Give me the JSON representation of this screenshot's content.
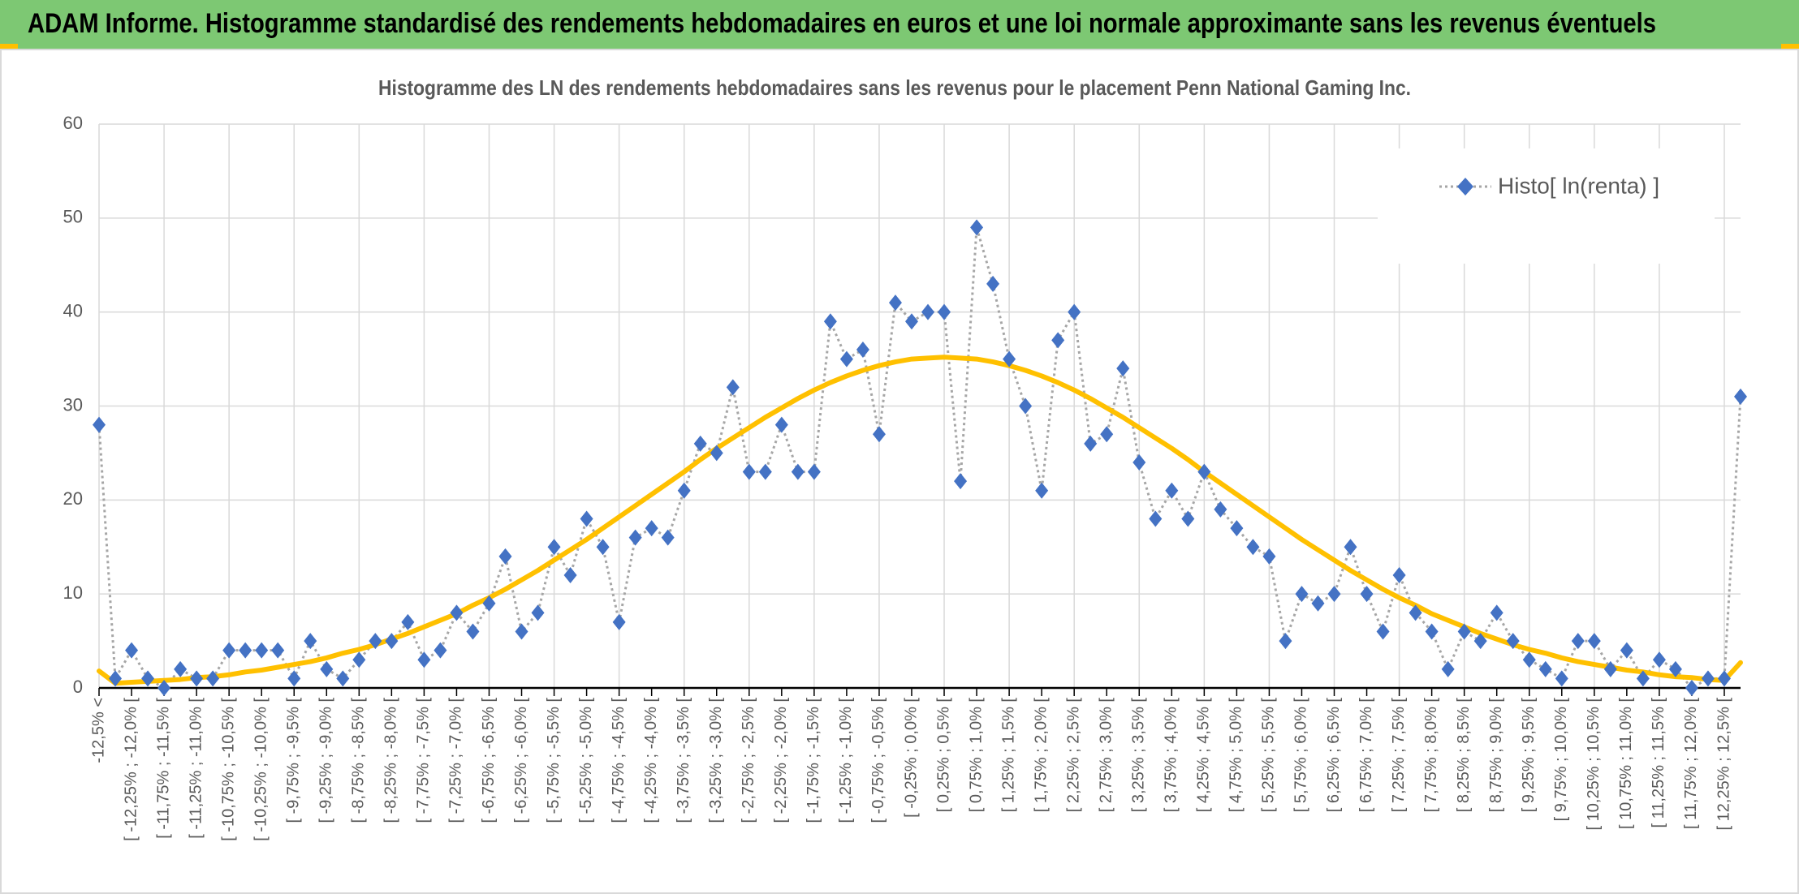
{
  "header": {
    "title": "ADAM Informe. Histogramme standardisé des rendements hebdomadaires en euros et une loi normale approximante sans les revenus éventuels"
  },
  "chart_data": {
    "type": "line",
    "title": "Histogramme des LN des rendements hebdomadaires sans les revenus pour le placement Penn National Gaming Inc.",
    "categories": [
      "-12,5% <",
      null,
      "[ -12,25% ; -12,0% [",
      null,
      "[ -11,75% ; -11,5% [",
      null,
      "[ -11,25% ; -11,0% [",
      null,
      "[ -10,75% ; -10,5% [",
      null,
      "[ -10,25% ; -10,0% [",
      null,
      "[ -9,75% ; -9,5% [",
      null,
      "[ -9,25% ; -9,0% [",
      null,
      "[ -8,75% ; -8,5% [",
      null,
      "[ -8,25% ; -8,0% [",
      null,
      "[ -7,75% ; -7,5% [",
      null,
      "[ -7,25% ; -7,0% [",
      null,
      "[ -6,75% ; -6,5% [",
      null,
      "[ -6,25% ; -6,0% [",
      null,
      "[ -5,75% ; -5,5% [",
      null,
      "[ -5,25% ; -5,0% [",
      null,
      "[ -4,75% ; -4,5% [",
      null,
      "[ -4,25% ; -4,0% [",
      null,
      "[ -3,75% ; -3,5% [",
      null,
      "[ -3,25% ; -3,0% [",
      null,
      "[ -2,75% ; -2,5% [",
      null,
      "[ -2,25% ; -2,0% [",
      null,
      "[ -1,75% ; -1,5% [",
      null,
      "[ -1,25% ; -1,0% [",
      null,
      "[ -0,75% ; -0,5% [",
      null,
      "[ -0,25% ; 0,0% [",
      null,
      "[ 0,25% ; 0,5% [",
      null,
      "[ 0,75% ; 1,0% [",
      null,
      "[ 1,25% ; 1,5% [",
      null,
      "[ 1,75% ; 2,0% [",
      null,
      "[ 2,25% ; 2,5% [",
      null,
      "[ 2,75% ; 3,0% [",
      null,
      "[ 3,25% ; 3,5% [",
      null,
      "[ 3,75% ; 4,0% [",
      null,
      "[ 4,25% ; 4,5% [",
      null,
      "[ 4,75% ; 5,0% [",
      null,
      "[ 5,25% ; 5,5% [",
      null,
      "[ 5,75% ; 6,0% [",
      null,
      "[ 6,25% ; 6,5% [",
      null,
      "[ 6,75% ; 7,0% [",
      null,
      "[ 7,25% ; 7,5% [",
      null,
      "[ 7,75% ; 8,0% [",
      null,
      "[ 8,25% ; 8,5% [",
      null,
      "[ 8,75% ; 9,0% [",
      null,
      "[ 9,25% ; 9,5% [",
      null,
      "[ 9,75% ; 10,0% [",
      null,
      "[ 10,25% ; 10,5% [",
      null,
      "[ 10,75% ; 11,0% [",
      null,
      "[ 11,25% ; 11,5% [",
      null,
      "[ 11,75% ; 12,0% [",
      null,
      "[ 12,25% ; 12,5% [",
      null
    ],
    "series": [
      {
        "name": "Histo[ ln(renta) ]",
        "color": "#4472c4",
        "line_color": "#a6a6a6",
        "marker": "diamond",
        "values": [
          28,
          1,
          4,
          1,
          0,
          2,
          1,
          1,
          4,
          4,
          4,
          4,
          1,
          5,
          2,
          1,
          3,
          5,
          5,
          7,
          3,
          4,
          8,
          6,
          9,
          14,
          6,
          8,
          15,
          12,
          18,
          15,
          7,
          16,
          17,
          16,
          21,
          26,
          25,
          32,
          23,
          23,
          28,
          23,
          23,
          39,
          35,
          36,
          27,
          41,
          39,
          40,
          40,
          22,
          49,
          43,
          35,
          30,
          21,
          37,
          40,
          26,
          27,
          34,
          24,
          18,
          21,
          18,
          23,
          19,
          17,
          15,
          14,
          5,
          10,
          9,
          10,
          15,
          10,
          6,
          12,
          8,
          6,
          2,
          6,
          5,
          8,
          5,
          3,
          2,
          1,
          5,
          5,
          2,
          4,
          1,
          3,
          2,
          0,
          1,
          1,
          31
        ]
      },
      {
        "color": "#ffc000",
        "values": [
          1.8,
          0.5,
          0.6,
          0.7,
          0.8,
          0.9,
          1.1,
          1.2,
          1.4,
          1.7,
          1.9,
          2.2,
          2.5,
          2.8,
          3.2,
          3.7,
          4.1,
          4.6,
          5.2,
          5.8,
          6.5,
          7.2,
          7.9,
          8.8,
          9.6,
          10.5,
          11.5,
          12.5,
          13.6,
          14.7,
          15.8,
          17.0,
          18.2,
          19.4,
          20.6,
          21.8,
          23.0,
          24.3,
          25.5,
          26.6,
          27.7,
          28.8,
          29.8,
          30.8,
          31.7,
          32.5,
          33.2,
          33.8,
          34.3,
          34.7,
          35.0,
          35.1,
          35.2,
          35.1,
          35.0,
          34.7,
          34.3,
          33.8,
          33.2,
          32.5,
          31.7,
          30.8,
          29.8,
          28.8,
          27.7,
          26.6,
          25.5,
          24.3,
          23.0,
          21.8,
          20.6,
          19.4,
          18.2,
          17.0,
          15.8,
          14.7,
          13.6,
          12.5,
          11.5,
          10.5,
          9.6,
          8.8,
          7.9,
          7.2,
          6.5,
          5.8,
          5.2,
          4.6,
          4.1,
          3.7,
          3.2,
          2.8,
          2.5,
          2.2,
          1.9,
          1.7,
          1.4,
          1.2,
          1.1,
          0.9,
          0.8,
          2.7
        ]
      }
    ],
    "ylim": [
      0,
      60
    ],
    "yticks": [
      0,
      10,
      20,
      30,
      40,
      50,
      60
    ],
    "grid": true,
    "legend": "upper right"
  }
}
